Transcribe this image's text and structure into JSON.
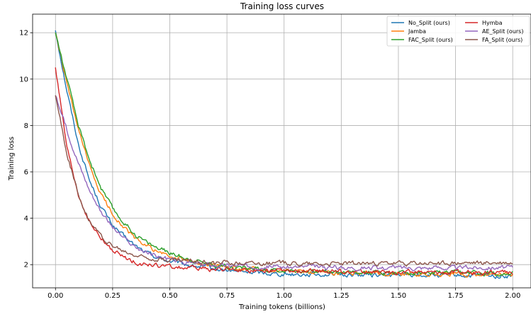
{
  "chart_data": {
    "type": "line",
    "title": "Training loss curves",
    "xlabel": "Training tokens (billions)",
    "ylabel": "Training loss",
    "xlim": [
      -0.1,
      2.08
    ],
    "ylim": [
      1.0,
      12.8
    ],
    "xticks": [
      "0.00",
      "0.25",
      "0.50",
      "0.75",
      "1.00",
      "1.25",
      "1.50",
      "1.75",
      "2.00"
    ],
    "xtick_values": [
      0,
      0.25,
      0.5,
      0.75,
      1.0,
      1.25,
      1.5,
      1.75,
      2.0
    ],
    "yticks": [
      "2",
      "4",
      "6",
      "8",
      "10",
      "12"
    ],
    "ytick_values": [
      2,
      4,
      6,
      8,
      10,
      12
    ],
    "grid": true,
    "legend_position": "top-right",
    "legend_columns": 2,
    "series": [
      {
        "name": "No_Split (ours)",
        "color": "#1f77b4",
        "x": [
          0,
          0.05,
          0.1,
          0.15,
          0.2,
          0.25,
          0.3,
          0.35,
          0.4,
          0.45,
          0.5,
          0.6,
          0.7,
          0.8,
          0.9,
          1.0,
          1.2,
          1.4,
          1.6,
          1.8,
          2.0
        ],
        "y": [
          12.1,
          9.5,
          7.2,
          5.6,
          4.5,
          3.7,
          3.2,
          2.8,
          2.5,
          2.3,
          2.15,
          1.95,
          1.8,
          1.7,
          1.65,
          1.6,
          1.58,
          1.55,
          1.55,
          1.52,
          1.5
        ]
      },
      {
        "name": "Jamba",
        "color": "#ff7f0e",
        "x": [
          0,
          0.05,
          0.1,
          0.15,
          0.2,
          0.25,
          0.3,
          0.35,
          0.4,
          0.45,
          0.5,
          0.6,
          0.7,
          0.8,
          0.9,
          1.0,
          1.2,
          1.4,
          1.6,
          1.8,
          2.0
        ],
        "y": [
          12.0,
          9.8,
          7.8,
          6.2,
          5.0,
          4.2,
          3.6,
          3.1,
          2.8,
          2.55,
          2.35,
          2.1,
          1.95,
          1.85,
          1.78,
          1.72,
          1.65,
          1.62,
          1.6,
          1.58,
          1.56
        ]
      },
      {
        "name": "FAC_Split (ours)",
        "color": "#2ca02c",
        "x": [
          0,
          0.05,
          0.1,
          0.15,
          0.2,
          0.25,
          0.3,
          0.35,
          0.4,
          0.45,
          0.5,
          0.6,
          0.7,
          0.8,
          0.9,
          1.0,
          1.2,
          1.4,
          1.6,
          1.8,
          2.0
        ],
        "y": [
          12.0,
          10.0,
          8.0,
          6.5,
          5.3,
          4.4,
          3.8,
          3.3,
          2.95,
          2.7,
          2.5,
          2.2,
          2.0,
          1.88,
          1.8,
          1.75,
          1.7,
          1.67,
          1.65,
          1.64,
          1.63
        ]
      },
      {
        "name": "Hymba",
        "color": "#d62728",
        "x": [
          0,
          0.05,
          0.1,
          0.15,
          0.2,
          0.25,
          0.3,
          0.35,
          0.4,
          0.45,
          0.5,
          0.6,
          0.7,
          0.8,
          0.9,
          1.0,
          1.2,
          1.4,
          1.6,
          1.8,
          2.0
        ],
        "y": [
          10.5,
          7.0,
          5.0,
          3.8,
          3.1,
          2.6,
          2.3,
          2.1,
          2.0,
          1.95,
          1.9,
          1.85,
          1.8,
          1.78,
          1.75,
          1.72,
          1.7,
          1.68,
          1.67,
          1.66,
          1.65
        ]
      },
      {
        "name": "AE_Split (ours)",
        "color": "#9467bd",
        "x": [
          0,
          0.05,
          0.1,
          0.15,
          0.2,
          0.25,
          0.3,
          0.35,
          0.4,
          0.45,
          0.5,
          0.6,
          0.7,
          0.8,
          0.9,
          1.0,
          1.2,
          1.4,
          1.6,
          1.8,
          2.0
        ],
        "y": [
          9.3,
          7.8,
          6.4,
          5.2,
          4.3,
          3.6,
          3.1,
          2.75,
          2.5,
          2.35,
          2.2,
          2.05,
          1.98,
          1.95,
          1.93,
          1.9,
          1.88,
          1.87,
          1.86,
          1.87,
          1.88
        ]
      },
      {
        "name": "FA_Split (ours)",
        "color": "#8c564b",
        "x": [
          0,
          0.05,
          0.1,
          0.15,
          0.2,
          0.25,
          0.3,
          0.35,
          0.4,
          0.45,
          0.5,
          0.6,
          0.7,
          0.8,
          0.9,
          1.0,
          1.2,
          1.4,
          1.6,
          1.8,
          2.0
        ],
        "y": [
          9.3,
          6.8,
          5.0,
          3.9,
          3.2,
          2.8,
          2.55,
          2.4,
          2.3,
          2.25,
          2.2,
          2.15,
          2.1,
          2.08,
          2.07,
          2.06,
          2.05,
          2.05,
          2.05,
          2.06,
          2.07
        ]
      }
    ]
  }
}
